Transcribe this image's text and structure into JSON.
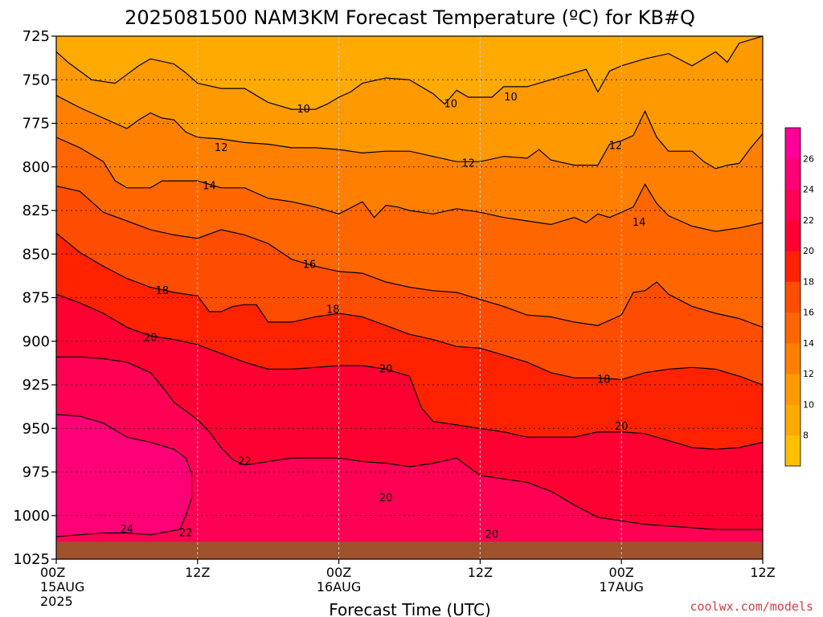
{
  "chart_data": {
    "type": "contour",
    "title": "2025081500 NAM3KM Forecast Temperature (ºC) for KB#Q",
    "xlabel": "Forecast Time (UTC)",
    "ylabel": "",
    "credit": "coolwx.com/models",
    "x_range_hours": [
      0,
      60
    ],
    "y_range_hpa": [
      1025,
      725
    ],
    "y_scale": "pressure (inverted, top = 725 hPa)",
    "grid": true,
    "y_ticks": [
      725,
      750,
      775,
      800,
      825,
      850,
      875,
      900,
      925,
      950,
      975,
      1000,
      1025
    ],
    "y_tick_labels": [
      "725",
      "750",
      "775",
      "800",
      "825",
      "850",
      "875",
      "900",
      "925",
      "950",
      "975",
      "1000",
      "1025"
    ],
    "x_ticks": [
      {
        "hour": 0,
        "label": "00Z",
        "sub1": "15AUG",
        "sub2": "2025"
      },
      {
        "hour": 12,
        "label": "12Z",
        "sub1": "",
        "sub2": ""
      },
      {
        "hour": 24,
        "label": "00Z",
        "sub1": "16AUG",
        "sub2": ""
      },
      {
        "hour": 36,
        "label": "12Z",
        "sub1": "",
        "sub2": ""
      },
      {
        "hour": 48,
        "label": "00Z",
        "sub1": "17AUG",
        "sub2": ""
      },
      {
        "hour": 60,
        "label": "12Z",
        "sub1": "",
        "sub2": ""
      }
    ],
    "contour_interval_c": 2,
    "colorbar": {
      "levels": [
        6,
        8,
        10,
        12,
        14,
        16,
        18,
        20,
        22,
        24,
        26,
        28
      ],
      "tick_labels": [
        "8",
        "10",
        "12",
        "14",
        "16",
        "18",
        "20",
        "22",
        "24",
        "26"
      ],
      "colors": [
        "#ffc000",
        "#ffaa00",
        "#ff9900",
        "#ff8000",
        "#ff6600",
        "#ff4d00",
        "#ff2200",
        "#ff0033",
        "#ff0055",
        "#ff0077",
        "#ff0099"
      ]
    },
    "contour_labels": [
      {
        "value": "10",
        "hour": 21,
        "p": 767
      },
      {
        "value": "10",
        "hour": 33.5,
        "p": 764
      },
      {
        "value": "10",
        "hour": 38.6,
        "p": 760
      },
      {
        "value": "12",
        "hour": 14,
        "p": 789
      },
      {
        "value": "12",
        "hour": 35,
        "p": 798
      },
      {
        "value": "12",
        "hour": 47.5,
        "p": 788
      },
      {
        "value": "14",
        "hour": 13,
        "p": 811
      },
      {
        "value": "14",
        "hour": 49.5,
        "p": 832
      },
      {
        "value": "16",
        "hour": 21.5,
        "p": 856
      },
      {
        "value": "18",
        "hour": 9,
        "p": 871
      },
      {
        "value": "18",
        "hour": 23.5,
        "p": 882
      },
      {
        "value": "18",
        "hour": 46.5,
        "p": 922
      },
      {
        "value": "20",
        "hour": 8,
        "p": 898
      },
      {
        "value": "20",
        "hour": 28,
        "p": 916
      },
      {
        "value": "20",
        "hour": 48,
        "p": 949
      },
      {
        "value": "20",
        "hour": 28,
        "p": 990
      },
      {
        "value": "20",
        "hour": 37,
        "p": 1011
      },
      {
        "value": "22",
        "hour": 16,
        "p": 969
      },
      {
        "value": "22",
        "hour": 11,
        "p": 1010
      },
      {
        "value": "24",
        "hour": 6,
        "p": 1008
      }
    ],
    "contours": [
      {
        "value": 10,
        "points": [
          [
            0,
            734
          ],
          [
            1,
            740
          ],
          [
            2,
            745
          ],
          [
            3,
            750
          ],
          [
            5,
            752
          ],
          [
            6,
            747
          ],
          [
            7,
            742
          ],
          [
            8,
            738
          ],
          [
            10,
            741
          ],
          [
            11,
            746
          ],
          [
            12,
            752
          ],
          [
            14,
            755
          ],
          [
            16,
            755
          ],
          [
            17,
            759
          ],
          [
            18,
            763
          ],
          [
            20,
            767
          ],
          [
            22,
            767
          ],
          [
            23,
            764
          ],
          [
            24,
            760
          ],
          [
            25,
            757
          ],
          [
            26,
            752
          ],
          [
            28,
            749
          ],
          [
            30,
            750
          ],
          [
            32,
            758
          ],
          [
            33,
            764
          ],
          [
            34,
            756
          ],
          [
            35,
            760
          ],
          [
            37,
            760
          ],
          [
            38,
            754
          ],
          [
            40,
            754
          ],
          [
            41,
            752
          ],
          [
            43,
            748
          ],
          [
            45,
            744
          ],
          [
            46,
            757
          ],
          [
            47,
            745
          ],
          [
            48,
            742
          ],
          [
            50,
            738
          ],
          [
            52,
            735
          ],
          [
            54,
            742
          ],
          [
            56,
            734
          ],
          [
            57,
            740
          ],
          [
            58,
            729
          ],
          [
            60,
            725
          ]
        ]
      },
      {
        "value": 12,
        "points": [
          [
            0,
            759
          ],
          [
            2,
            766
          ],
          [
            4,
            772
          ],
          [
            6,
            778
          ],
          [
            7,
            773
          ],
          [
            8,
            769
          ],
          [
            9,
            772
          ],
          [
            10,
            773
          ],
          [
            11,
            780
          ],
          [
            12,
            783
          ],
          [
            14,
            784
          ],
          [
            16,
            786
          ],
          [
            18,
            787
          ],
          [
            20,
            789
          ],
          [
            22,
            789
          ],
          [
            24,
            790
          ],
          [
            26,
            792
          ],
          [
            28,
            791
          ],
          [
            30,
            791
          ],
          [
            32,
            794
          ],
          [
            34,
            797
          ],
          [
            36,
            797
          ],
          [
            38,
            794
          ],
          [
            40,
            795
          ],
          [
            41,
            790
          ],
          [
            42,
            796
          ],
          [
            44,
            799
          ],
          [
            46,
            799
          ],
          [
            47,
            787
          ],
          [
            48,
            785
          ],
          [
            49,
            782
          ],
          [
            50,
            768
          ],
          [
            51,
            783
          ],
          [
            52,
            791
          ],
          [
            54,
            791
          ],
          [
            55,
            797
          ],
          [
            56,
            801
          ],
          [
            57,
            799
          ],
          [
            58,
            798
          ],
          [
            59,
            789
          ],
          [
            60,
            781
          ]
        ]
      },
      {
        "value": 14,
        "points": [
          [
            0,
            783
          ],
          [
            2,
            789
          ],
          [
            4,
            797
          ],
          [
            5,
            808
          ],
          [
            6,
            812
          ],
          [
            8,
            812
          ],
          [
            9,
            808
          ],
          [
            10,
            808
          ],
          [
            12,
            808
          ],
          [
            14,
            812
          ],
          [
            16,
            812
          ],
          [
            18,
            818
          ],
          [
            20,
            820
          ],
          [
            22,
            823
          ],
          [
            24,
            827
          ],
          [
            26,
            820
          ],
          [
            27,
            829
          ],
          [
            28,
            822
          ],
          [
            29,
            823
          ],
          [
            30,
            825
          ],
          [
            32,
            827
          ],
          [
            34,
            824
          ],
          [
            36,
            826
          ],
          [
            38,
            829
          ],
          [
            40,
            831
          ],
          [
            42,
            833
          ],
          [
            44,
            829
          ],
          [
            45,
            832
          ],
          [
            46,
            827
          ],
          [
            47,
            829
          ],
          [
            48,
            826
          ],
          [
            49,
            823
          ],
          [
            50,
            810
          ],
          [
            51,
            821
          ],
          [
            52,
            828
          ],
          [
            54,
            834
          ],
          [
            56,
            837
          ],
          [
            58,
            835
          ],
          [
            60,
            832
          ]
        ]
      },
      {
        "value": 16,
        "points": [
          [
            0,
            811
          ],
          [
            2,
            814
          ],
          [
            4,
            826
          ],
          [
            6,
            831
          ],
          [
            8,
            836
          ],
          [
            10,
            839
          ],
          [
            12,
            841
          ],
          [
            14,
            836
          ],
          [
            16,
            839
          ],
          [
            18,
            844
          ],
          [
            20,
            853
          ],
          [
            22,
            857
          ],
          [
            24,
            860
          ],
          [
            26,
            861
          ],
          [
            28,
            866
          ],
          [
            30,
            869
          ],
          [
            32,
            871
          ],
          [
            34,
            872
          ],
          [
            36,
            876
          ],
          [
            38,
            880
          ],
          [
            40,
            885
          ],
          [
            42,
            886
          ],
          [
            44,
            889
          ],
          [
            46,
            891
          ],
          [
            47,
            888
          ],
          [
            48,
            885
          ],
          [
            49,
            872
          ],
          [
            50,
            871
          ],
          [
            51,
            866
          ],
          [
            52,
            873
          ],
          [
            54,
            880
          ],
          [
            56,
            884
          ],
          [
            58,
            887
          ],
          [
            60,
            892
          ]
        ]
      },
      {
        "value": 18,
        "points": [
          [
            0,
            838
          ],
          [
            2,
            849
          ],
          [
            4,
            857
          ],
          [
            6,
            864
          ],
          [
            8,
            869
          ],
          [
            10,
            872
          ],
          [
            12,
            874
          ],
          [
            13,
            883
          ],
          [
            14,
            883
          ],
          [
            15,
            880
          ],
          [
            16,
            879
          ],
          [
            17,
            879
          ],
          [
            18,
            889
          ],
          [
            20,
            889
          ],
          [
            22,
            886
          ],
          [
            24,
            884
          ],
          [
            26,
            886
          ],
          [
            28,
            891
          ],
          [
            30,
            896
          ],
          [
            32,
            899
          ],
          [
            34,
            903
          ],
          [
            36,
            904
          ],
          [
            38,
            908
          ],
          [
            40,
            912
          ],
          [
            42,
            918
          ],
          [
            44,
            921
          ],
          [
            46,
            921
          ],
          [
            48,
            922
          ],
          [
            50,
            918
          ],
          [
            52,
            916
          ],
          [
            54,
            915
          ],
          [
            56,
            916
          ],
          [
            58,
            920
          ],
          [
            60,
            925
          ]
        ]
      },
      {
        "value": 20,
        "points": [
          [
            0,
            873
          ],
          [
            2,
            878
          ],
          [
            4,
            884
          ],
          [
            6,
            892
          ],
          [
            8,
            897
          ],
          [
            10,
            899
          ],
          [
            12,
            902
          ],
          [
            14,
            907
          ],
          [
            16,
            912
          ],
          [
            18,
            916
          ],
          [
            20,
            916
          ],
          [
            22,
            915
          ],
          [
            24,
            914
          ],
          [
            26,
            914
          ],
          [
            28,
            916
          ],
          [
            30,
            920
          ],
          [
            31,
            938
          ],
          [
            32,
            946
          ],
          [
            34,
            948
          ],
          [
            36,
            950
          ],
          [
            38,
            952
          ],
          [
            40,
            955
          ],
          [
            42,
            955
          ],
          [
            44,
            955
          ],
          [
            46,
            952
          ],
          [
            48,
            952
          ],
          [
            50,
            953
          ],
          [
            52,
            957
          ],
          [
            54,
            961
          ],
          [
            56,
            962
          ],
          [
            58,
            961
          ],
          [
            60,
            958
          ]
        ]
      },
      {
        "value": 22,
        "points": [
          [
            0,
            909
          ],
          [
            2,
            909
          ],
          [
            4,
            910
          ],
          [
            6,
            912
          ],
          [
            8,
            918
          ],
          [
            9,
            926
          ],
          [
            10,
            935
          ],
          [
            12,
            945
          ],
          [
            13,
            952
          ],
          [
            14,
            961
          ],
          [
            15,
            968
          ],
          [
            16,
            971
          ],
          [
            18,
            969
          ],
          [
            20,
            967
          ],
          [
            22,
            967
          ],
          [
            24,
            967
          ],
          [
            26,
            969
          ],
          [
            28,
            970
          ],
          [
            30,
            972
          ],
          [
            32,
            970
          ],
          [
            34,
            967
          ],
          [
            36,
            977
          ],
          [
            38,
            979
          ],
          [
            40,
            981
          ],
          [
            42,
            986
          ],
          [
            44,
            994
          ],
          [
            46,
            1001
          ],
          [
            48,
            1003
          ],
          [
            50,
            1005
          ],
          [
            52,
            1006
          ],
          [
            54,
            1007
          ],
          [
            56,
            1008
          ],
          [
            58,
            1008
          ],
          [
            60,
            1008
          ]
        ]
      },
      {
        "value": 24,
        "points": [
          [
            0,
            942
          ],
          [
            2,
            943
          ],
          [
            4,
            947
          ],
          [
            6,
            955
          ],
          [
            8,
            958
          ],
          [
            10,
            962
          ],
          [
            11,
            967
          ],
          [
            11.5,
            976
          ],
          [
            11.5,
            990
          ],
          [
            11,
            1000
          ],
          [
            10.5,
            1008
          ],
          [
            8,
            1011
          ],
          [
            6,
            1010
          ],
          [
            4,
            1010
          ],
          [
            2,
            1011
          ],
          [
            0,
            1012
          ]
        ]
      }
    ]
  }
}
